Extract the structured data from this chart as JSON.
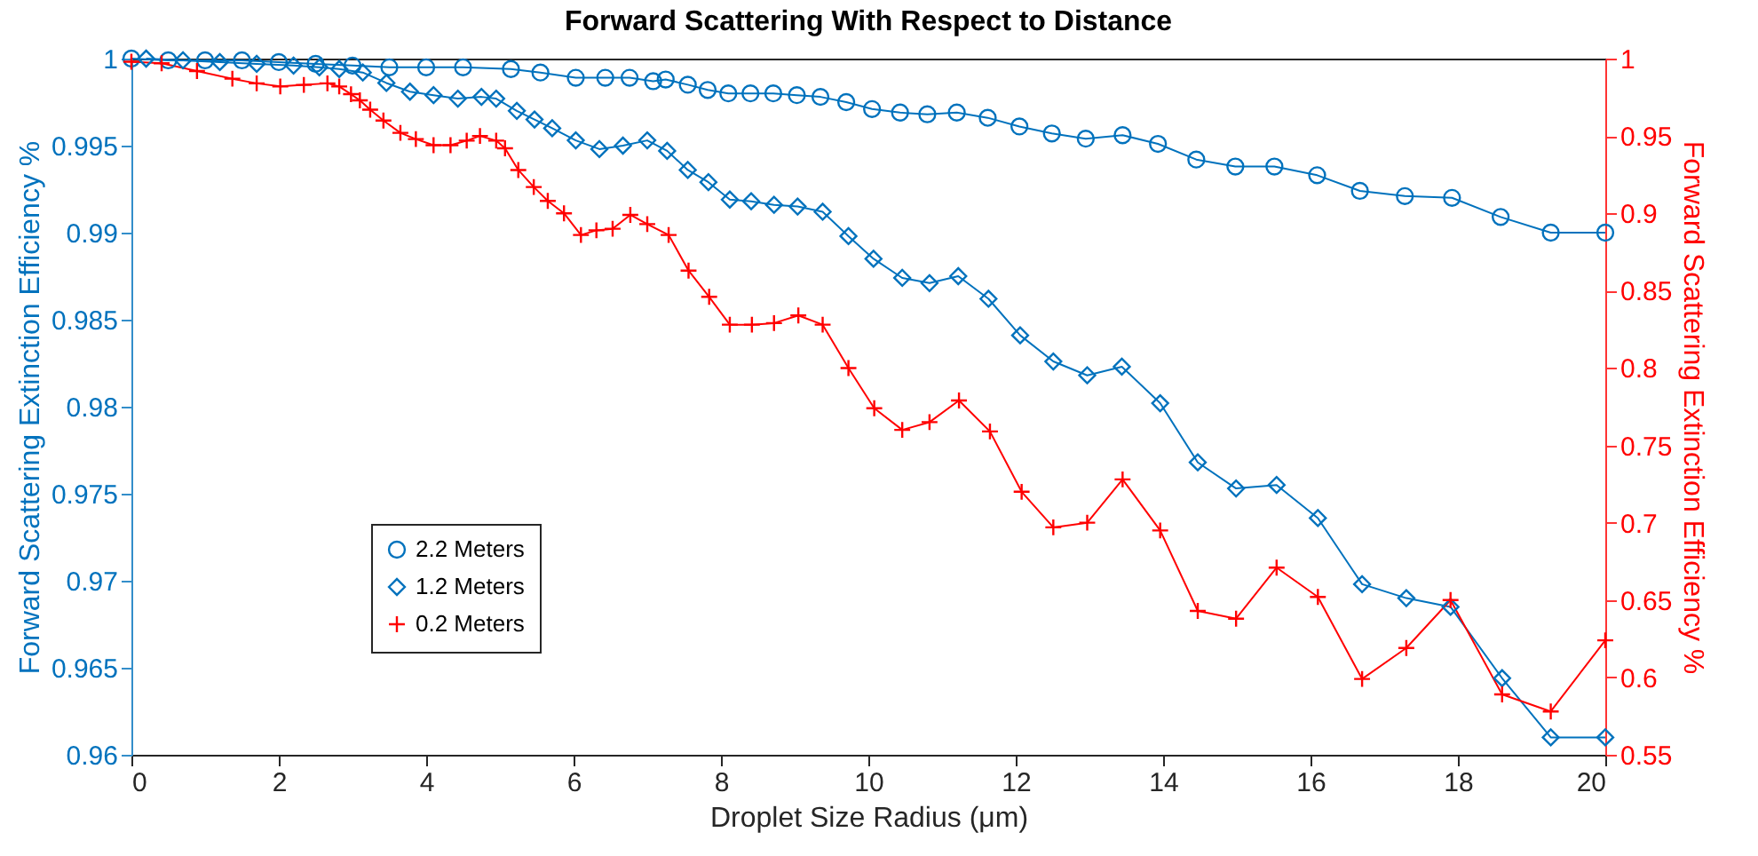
{
  "chart_data": {
    "type": "line",
    "title": "Forward Scattering With Respect to Distance",
    "xlabel": "Droplet Size Radius (μm)",
    "ylabel": "Forward Scattering Extinction Efficiency %",
    "y2label": "Forward Scattering Extinction Efficiency %",
    "xlim": [
      0,
      20
    ],
    "xticks": [
      0,
      2,
      4,
      6,
      8,
      10,
      12,
      14,
      16,
      18,
      20
    ],
    "ylim": [
      0.96,
      1
    ],
    "yticks": [
      0.96,
      0.965,
      0.97,
      0.975,
      0.98,
      0.985,
      0.99,
      0.995,
      1
    ],
    "y2lim": [
      0.55,
      1
    ],
    "y2ticks": [
      0.55,
      0.6,
      0.65,
      0.7,
      0.75,
      0.8,
      0.85,
      0.9,
      0.95,
      1
    ],
    "grid": false,
    "legend": "bottom left",
    "line_style": "solid",
    "series": [
      {
        "name": "2.2 Meters",
        "color": "#0072bd",
        "marker": "circle",
        "x": [
          0,
          0.5,
          1,
          1.5,
          2,
          2.5,
          3,
          3.5,
          4,
          4.5,
          5.15,
          5.55,
          6.03,
          6.43,
          6.76,
          7.08,
          7.25,
          7.55,
          7.82,
          8.1,
          8.4,
          8.71,
          9.03,
          9.35,
          9.7,
          10.05,
          10.43,
          10.8,
          11.2,
          11.62,
          12.05,
          12.49,
          12.95,
          13.45,
          13.93,
          14.45,
          14.98,
          15.51,
          16.09,
          16.67,
          17.28,
          17.92,
          18.58,
          19.26,
          20
        ],
        "values": [
          1,
          0.9999,
          0.9999,
          0.9999,
          0.9998,
          0.9997,
          0.9996,
          0.9995,
          0.9995,
          0.9995,
          0.9994,
          0.9992,
          0.9989,
          0.9989,
          0.9989,
          0.9987,
          0.9988,
          0.9985,
          0.9982,
          0.998,
          0.998,
          0.998,
          0.9979,
          0.9978,
          0.9975,
          0.9971,
          0.9969,
          0.9968,
          0.9969,
          0.9966,
          0.9961,
          0.9957,
          0.9954,
          0.9956,
          0.9951,
          0.9942,
          0.9938,
          0.9938,
          0.9933,
          0.9924,
          0.9921,
          0.992,
          0.9909,
          0.99,
          0.99
        ]
      },
      {
        "name": "1.2 Meters",
        "color": "#0072bd",
        "marker": "diamond",
        "x": [
          0.2,
          0.7,
          1.2,
          1.7,
          2.2,
          2.55,
          2.82,
          3.14,
          3.46,
          3.78,
          4.1,
          4.43,
          4.75,
          4.95,
          5.23,
          5.47,
          5.71,
          6.03,
          6.35,
          6.67,
          7,
          7.27,
          7.55,
          7.83,
          8.12,
          8.41,
          8.72,
          9.04,
          9.38,
          9.73,
          10.07,
          10.46,
          10.83,
          11.22,
          11.63,
          12.06,
          12.51,
          12.97,
          13.44,
          13.96,
          14.47,
          14.99,
          15.54,
          16.1,
          16.7,
          17.3,
          17.9,
          18.6,
          19.26,
          20
        ],
        "values": [
          1,
          0.9999,
          0.9998,
          0.9997,
          0.9996,
          0.9995,
          0.9994,
          0.9992,
          0.9986,
          0.9981,
          0.9979,
          0.9977,
          0.9978,
          0.9977,
          0.997,
          0.9965,
          0.996,
          0.9953,
          0.9948,
          0.995,
          0.9953,
          0.9947,
          0.9936,
          0.9929,
          0.9919,
          0.9918,
          0.9916,
          0.9915,
          0.9912,
          0.9898,
          0.9885,
          0.9874,
          0.9871,
          0.9875,
          0.9862,
          0.9841,
          0.9826,
          0.9818,
          0.9823,
          0.9802,
          0.9768,
          0.9753,
          0.9755,
          0.9736,
          0.9698,
          0.969,
          0.9685,
          0.9644,
          0.961,
          0.961
        ]
      },
      {
        "name": "0.2 Meters",
        "color": "#ff0000",
        "marker": "cross",
        "axis": "y2",
        "x": [
          0,
          0.41,
          0.89,
          1.37,
          1.7,
          2.02,
          2.34,
          2.66,
          2.82,
          2.98,
          3.1,
          3.24,
          3.42,
          3.65,
          3.86,
          4.1,
          4.33,
          4.55,
          4.73,
          4.95,
          5.07,
          5.25,
          5.46,
          5.65,
          5.87,
          6.1,
          6.31,
          6.53,
          6.77,
          7.0,
          7.29,
          7.56,
          7.84,
          8.12,
          8.42,
          8.72,
          9.05,
          9.38,
          9.73,
          10.08,
          10.46,
          10.83,
          11.23,
          11.65,
          12.08,
          12.51,
          12.97,
          13.45,
          13.96,
          14.47,
          14.99,
          15.54,
          16.1,
          16.7,
          17.3,
          17.9,
          18.6,
          19.26,
          20
        ],
        "values": [
          0.998,
          0.997,
          0.992,
          0.987,
          0.984,
          0.982,
          0.983,
          0.984,
          0.982,
          0.977,
          0.973,
          0.967,
          0.96,
          0.952,
          0.948,
          0.944,
          0.944,
          0.947,
          0.95,
          0.947,
          0.942,
          0.928,
          0.917,
          0.908,
          0.9,
          0.886,
          0.889,
          0.89,
          0.899,
          0.893,
          0.886,
          0.863,
          0.846,
          0.828,
          0.828,
          0.829,
          0.834,
          0.828,
          0.8,
          0.774,
          0.76,
          0.765,
          0.779,
          0.759,
          0.72,
          0.697,
          0.7,
          0.728,
          0.695,
          0.643,
          0.638,
          0.671,
          0.652,
          0.599,
          0.619,
          0.65,
          0.589,
          0.578,
          0.624
        ]
      }
    ]
  }
}
